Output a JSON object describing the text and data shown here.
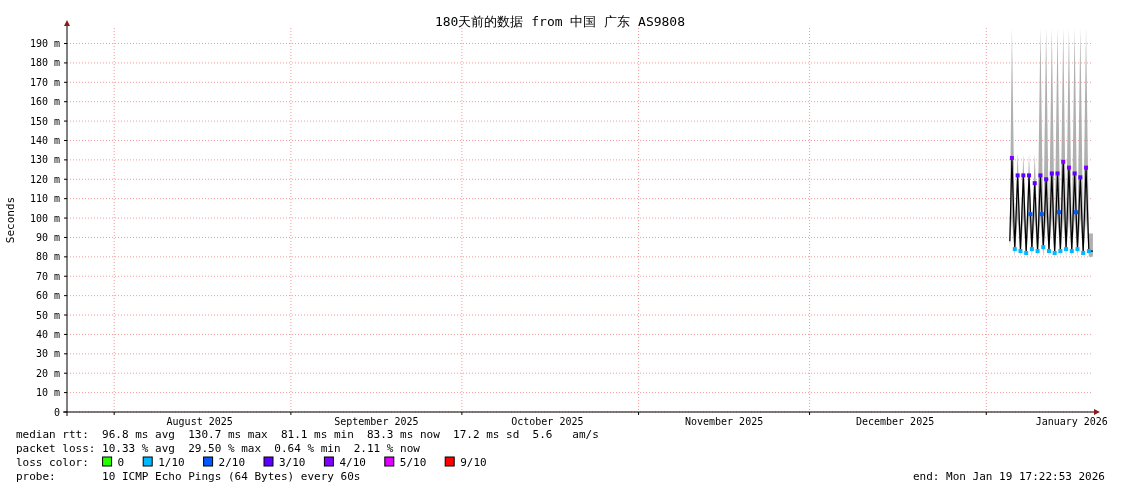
{
  "chart_data": {
    "type": "line",
    "title": "180天前的数据 from 中国 广东 AS9808",
    "ylabel": "Seconds",
    "xlim": [
      "2025-07-23T17:22",
      "2026-01-19T17:22"
    ],
    "xticks": [
      {
        "value": "2025-08-01",
        "label": null
      },
      {
        "value": "2025-08-16",
        "label": "August 2025"
      },
      {
        "value": "2025-09-01",
        "label": null
      },
      {
        "value": "2025-09-16",
        "label": "September 2025"
      },
      {
        "value": "2025-10-01",
        "label": null
      },
      {
        "value": "2025-10-16",
        "label": "October 2025"
      },
      {
        "value": "2025-11-01",
        "label": null
      },
      {
        "value": "2025-11-16",
        "label": "November 2025"
      },
      {
        "value": "2025-12-01",
        "label": null
      },
      {
        "value": "2025-12-16",
        "label": "December 2025"
      },
      {
        "value": "2026-01-01",
        "label": null
      },
      {
        "value": "2026-01-16",
        "label": "January 2026"
      }
    ],
    "ylim": [
      0,
      198
    ],
    "yticks": [
      0,
      {
        "value": 10,
        "label": "10 m"
      },
      {
        "value": 20,
        "label": "20 m"
      },
      {
        "value": 30,
        "label": "30 m"
      },
      {
        "value": 40,
        "label": "40 m"
      },
      {
        "value": 50,
        "label": "50 m"
      },
      {
        "value": 60,
        "label": "60 m"
      },
      {
        "value": 70,
        "label": "70 m"
      },
      {
        "value": 80,
        "label": "80 m"
      },
      {
        "value": 90,
        "label": "90 m"
      },
      {
        "value": 100,
        "label": "100 m"
      },
      {
        "value": 110,
        "label": "110 m"
      },
      {
        "value": 120,
        "label": "120 m"
      },
      {
        "value": 130,
        "label": "130 m"
      },
      {
        "value": 140,
        "label": "140 m"
      },
      {
        "value": 150,
        "label": "150 m"
      },
      {
        "value": 160,
        "label": "160 m"
      },
      {
        "value": 170,
        "label": "170 m"
      },
      {
        "value": 180,
        "label": "180 m"
      },
      {
        "value": 190,
        "label": "190 m"
      }
    ],
    "grid": true,
    "legend": "bottom left",
    "legend_title": "loss color:",
    "series": [
      {
        "color": "#000000",
        "x": [
          "2026-01-05T03:00",
          "2026-01-05T12:00",
          "2026-01-06T00:00",
          "2026-01-06T12:00",
          "2026-01-07T00:00",
          "2026-01-07T12:00",
          "2026-01-08T00:00",
          "2026-01-08T12:00",
          "2026-01-09T00:00",
          "2026-01-09T12:00",
          "2026-01-10T00:00",
          "2026-01-10T12:00",
          "2026-01-11T00:00",
          "2026-01-11T12:00",
          "2026-01-12T00:00",
          "2026-01-12T12:00",
          "2026-01-13T00:00",
          "2026-01-13T12:00",
          "2026-01-14T00:00",
          "2026-01-14T12:00",
          "2026-01-15T00:00",
          "2026-01-15T12:00",
          "2026-01-16T00:00",
          "2026-01-16T12:00",
          "2026-01-17T00:00",
          "2026-01-17T12:00",
          "2026-01-18T00:00",
          "2026-01-18T12:00",
          "2026-01-19T00:00",
          "2026-01-19T17:00"
        ],
        "values": [
          88,
          131,
          84,
          122,
          83,
          122,
          82,
          122,
          84,
          118,
          83,
          122,
          85,
          120,
          83,
          123,
          82,
          123,
          83,
          129,
          84,
          126,
          83,
          123,
          84,
          121,
          82,
          126,
          83,
          83
        ],
        "lower": [
          84,
          100,
          80,
          100,
          80,
          100,
          80,
          100,
          80,
          100,
          80,
          100,
          80,
          100,
          80,
          100,
          80,
          100,
          80,
          100,
          80,
          100,
          80,
          100,
          80,
          100,
          80,
          100,
          80,
          80
        ],
        "upper": [
          95,
          198,
          92,
          134,
          92,
          133,
          92,
          133,
          92,
          133,
          92,
          198,
          92,
          198,
          92,
          198,
          92,
          198,
          92,
          198,
          92,
          198,
          92,
          198,
          92,
          198,
          92,
          198,
          92,
          92
        ]
      },
      {
        "type": "scatter",
        "name": "0",
        "color": "#26ff00",
        "marker": "square"
      },
      {
        "type": "scatter",
        "name": "1/10",
        "color": "#00b8ff",
        "marker": "square",
        "x": [
          "2026-01-06T00:00",
          "2026-01-07T00:00",
          "2026-01-08T00:00",
          "2026-01-09T00:00",
          "2026-01-10T00:00",
          "2026-01-11T00:00",
          "2026-01-12T00:00",
          "2026-01-13T00:00",
          "2026-01-14T00:00",
          "2026-01-15T00:00",
          "2026-01-16T00:00",
          "2026-01-17T00:00",
          "2026-01-18T00:00",
          "2026-01-19T00:00"
        ],
        "values": [
          84,
          83,
          82,
          84,
          83,
          85,
          83,
          82,
          83,
          84,
          83,
          84,
          82,
          83
        ]
      },
      {
        "type": "scatter",
        "name": "2/10",
        "color": "#0059ff",
        "marker": "square",
        "x": [
          "2026-01-08T18:00",
          "2026-01-10T18:00",
          "2026-01-13T18:00",
          "2026-01-16T18:00"
        ],
        "values": [
          102,
          102,
          103,
          103
        ]
      },
      {
        "type": "scatter",
        "name": "3/10",
        "color": "#5e00ff",
        "marker": "square",
        "x": [
          "2026-01-06T12:00",
          "2026-01-07T12:00",
          "2026-01-08T12:00",
          "2026-01-09T12:00",
          "2026-01-10T12:00",
          "2026-01-11T12:00",
          "2026-01-12T12:00",
          "2026-01-13T12:00",
          "2026-01-16T12:00",
          "2026-01-17T12:00"
        ],
        "values": [
          122,
          122,
          122,
          118,
          122,
          120,
          123,
          123,
          123,
          121
        ]
      },
      {
        "type": "scatter",
        "name": "4/10",
        "color": "#7e00ff",
        "marker": "square",
        "x": [
          "2026-01-05T12:00",
          "2026-01-14T12:00",
          "2026-01-15T12:00",
          "2026-01-18T12:00"
        ],
        "values": [
          131,
          129,
          126,
          126
        ]
      },
      {
        "type": "scatter",
        "name": "5/10",
        "color": "#dd00ff",
        "marker": "square"
      },
      {
        "type": "scatter",
        "name": "9/10",
        "color": "#ff0000",
        "marker": "square"
      }
    ],
    "annotations": [
      "median rtt:  96.8 ms avg  130.7 ms max  81.1 ms min  83.3 ms now  17.2 ms sd  5.6   am/s",
      "packet loss: 10.33 % avg  29.50 % max  0.64 % min  2.11 % now",
      "probe:       10 ICMP Echo Pings (64 Bytes) every 60s",
      "end: Mon Jan 19 17:22:53 2026"
    ]
  }
}
